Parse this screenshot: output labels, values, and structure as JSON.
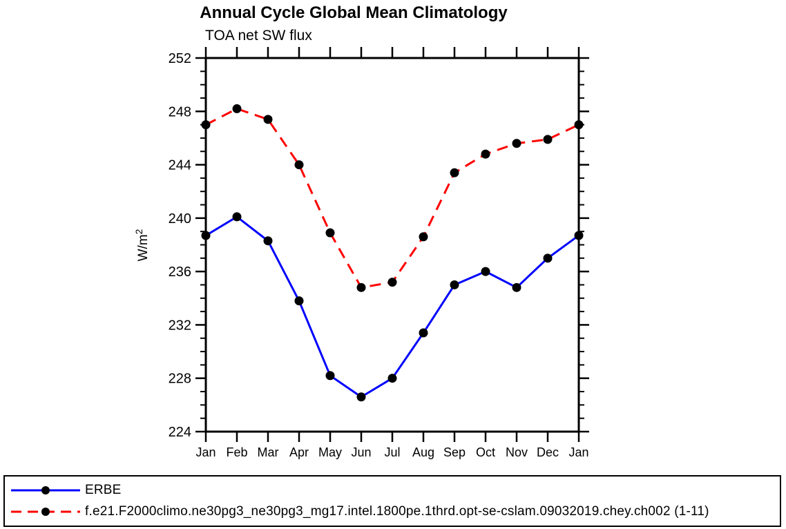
{
  "chart_data": {
    "type": "line",
    "title": "Annual Cycle Global Mean Climatology",
    "subtitle": "TOA net SW flux",
    "ylabel": "W/m²",
    "xlabel": "",
    "categories": [
      "Jan",
      "Feb",
      "Mar",
      "Apr",
      "May",
      "Jun",
      "Jul",
      "Aug",
      "Sep",
      "Oct",
      "Nov",
      "Dec",
      "Jan"
    ],
    "ylim": [
      224,
      252
    ],
    "ytick_major": 4,
    "ytick_minor": 1,
    "grid": "off",
    "legend_position": "bottom",
    "axis_color": "#000000",
    "series": [
      {
        "name": "ERBE",
        "color": "#0000ff",
        "style": "solid",
        "marker": "circle",
        "marker_color": "#000000",
        "values": [
          238.7,
          240.1,
          238.3,
          233.8,
          228.2,
          226.6,
          228.0,
          231.4,
          235.0,
          236.0,
          234.8,
          237.0,
          238.7
        ]
      },
      {
        "name": "f.e21.F2000climo.ne30pg3_ne30pg3_mg17.intel.1800pe.1thrd.opt-se-cslam.09032019.chey.ch002 (1-11)",
        "color": "#ff0000",
        "style": "dashed",
        "marker": "circle",
        "marker_color": "#000000",
        "values": [
          247.0,
          248.2,
          247.4,
          244.0,
          238.9,
          234.8,
          235.2,
          238.6,
          243.4,
          244.8,
          245.6,
          245.9,
          247.0
        ]
      }
    ]
  }
}
